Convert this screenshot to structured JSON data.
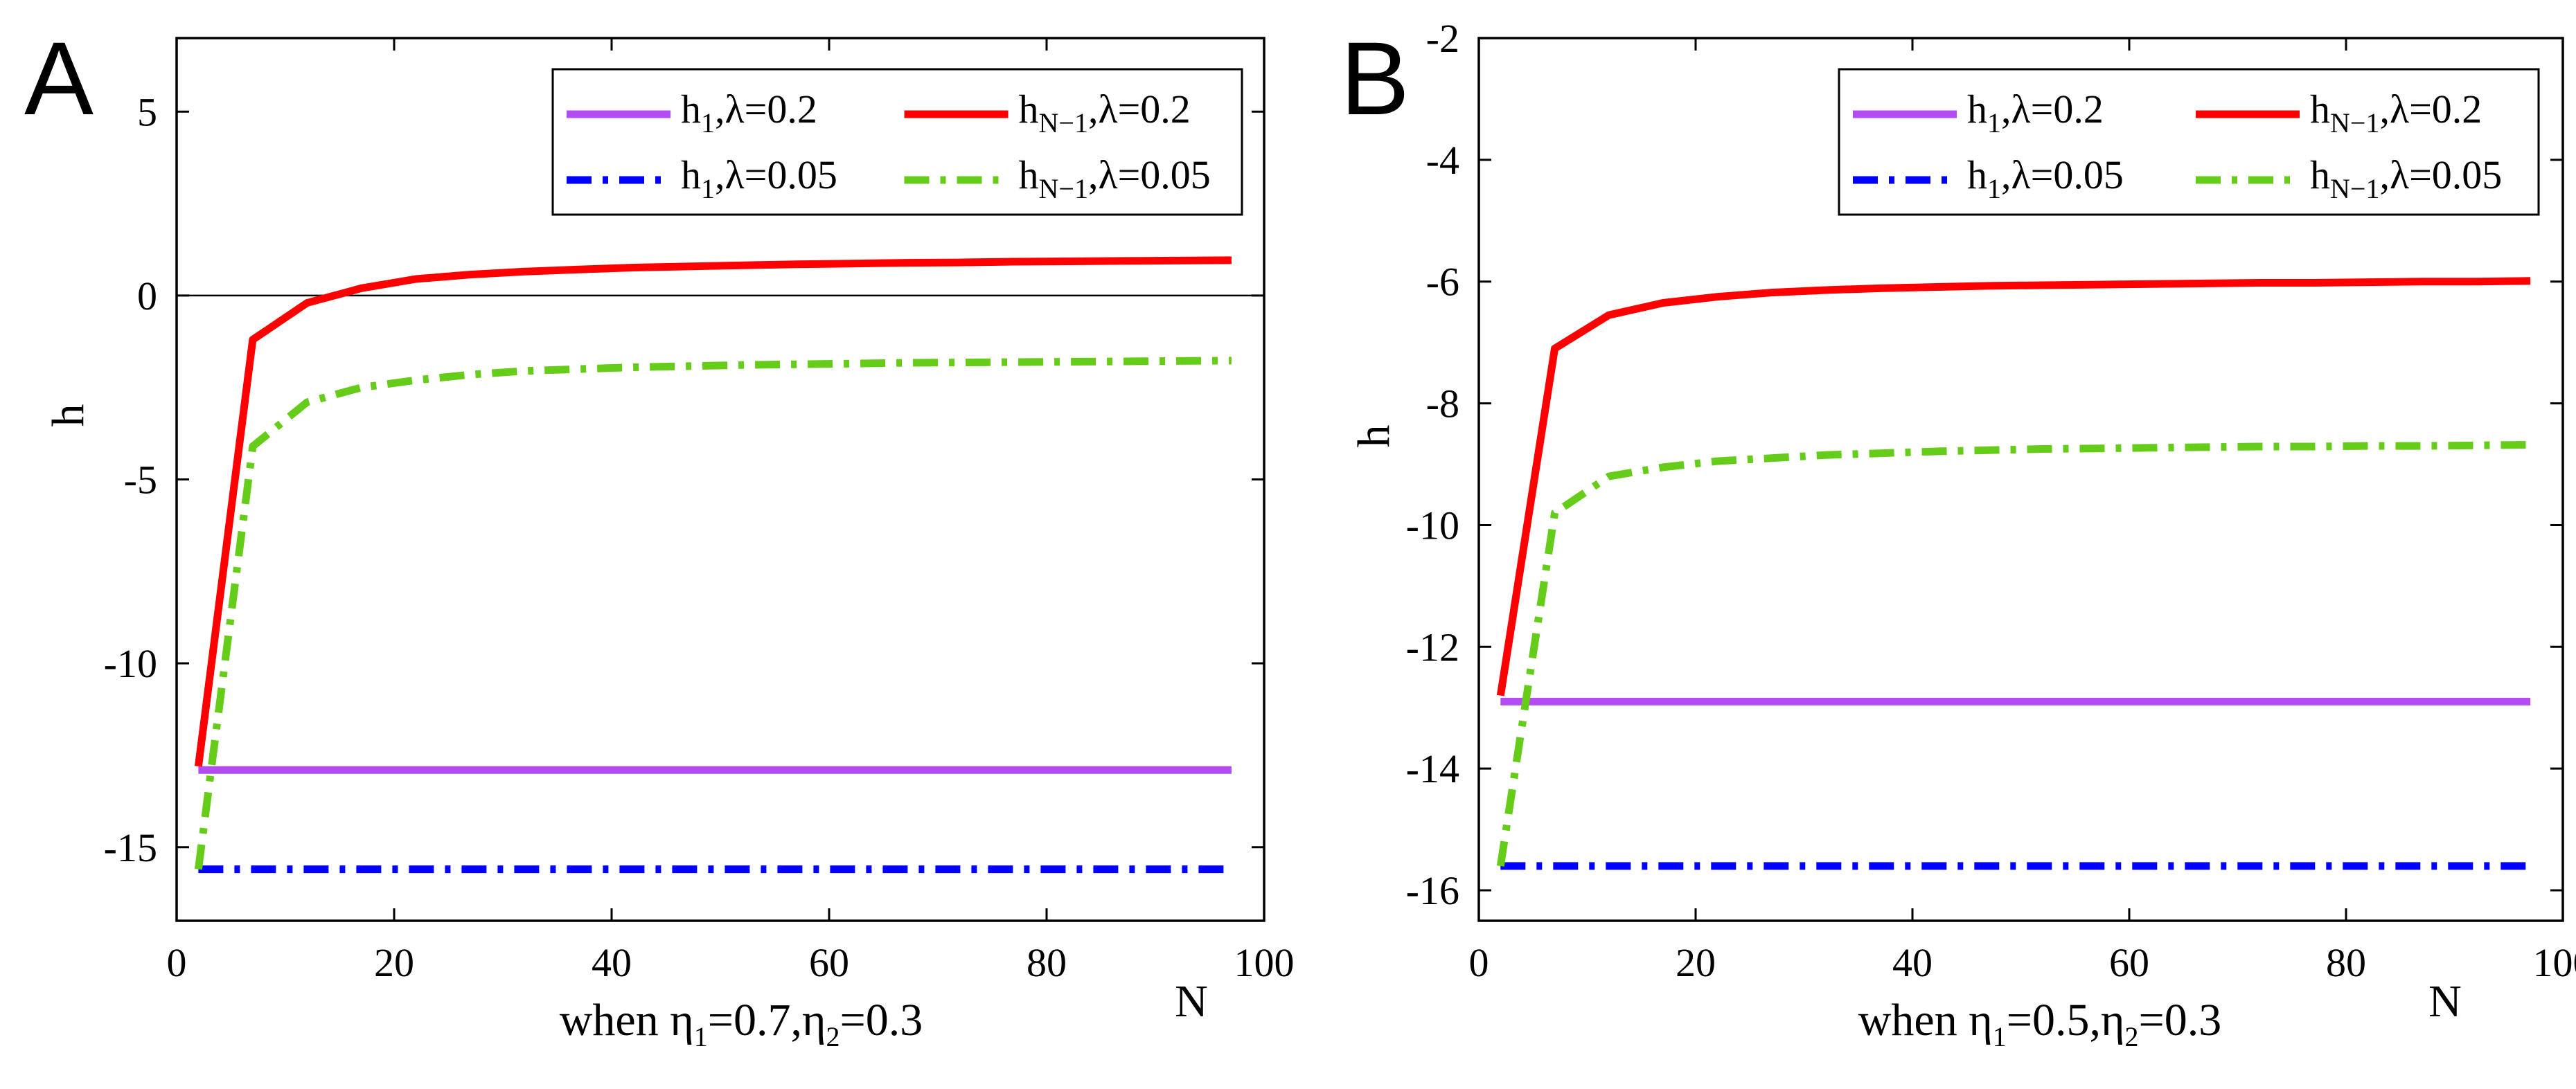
{
  "chart_data": [
    {
      "type": "line",
      "panel": "A",
      "title": "",
      "xlabel": "N",
      "ylabel": "h",
      "caption": {
        "prefix": "when η",
        "sub1": "1",
        "mid": "=0.7,η",
        "sub2": "2",
        "suffix": "=0.3"
      },
      "xlim": [
        0,
        100
      ],
      "ylim": [
        -17,
        7
      ],
      "xticks": [
        0,
        20,
        40,
        60,
        80,
        100
      ],
      "yticks": [
        5,
        0,
        -5,
        -10,
        -15
      ],
      "zero_line": true,
      "grid": false,
      "legend_position": "top-right",
      "x": [
        2,
        7,
        12,
        17,
        22,
        27,
        32,
        37,
        42,
        47,
        52,
        57,
        62,
        67,
        72,
        77,
        82,
        87,
        92,
        97
      ],
      "series": [
        {
          "name": "h1,λ=0.2",
          "label_main": "h",
          "label_sub": "1",
          "label_rest": ",λ=0.2",
          "color": "#B34CF2",
          "style": "solid",
          "values": [
            -12.9,
            -12.9,
            -12.9,
            -12.9,
            -12.9,
            -12.9,
            -12.9,
            -12.9,
            -12.9,
            -12.9,
            -12.9,
            -12.9,
            -12.9,
            -12.9,
            -12.9,
            -12.9,
            -12.9,
            -12.9,
            -12.9,
            -12.9
          ]
        },
        {
          "name": "hN−1,λ=0.2",
          "label_main": "h",
          "label_sub": "N−1",
          "label_rest": ",λ=0.2",
          "color": "#FF0000",
          "style": "solid",
          "values": [
            -12.8,
            -1.2,
            -0.2,
            0.2,
            0.45,
            0.57,
            0.65,
            0.71,
            0.76,
            0.79,
            0.82,
            0.85,
            0.87,
            0.89,
            0.9,
            0.92,
            0.93,
            0.94,
            0.95,
            0.96
          ]
        },
        {
          "name": "h1,λ=0.05",
          "label_main": "h",
          "label_sub": "1",
          "label_rest": ",λ=0.05",
          "color": "#0000FF",
          "style": "dashdot",
          "values": [
            -15.6,
            -15.6,
            -15.6,
            -15.6,
            -15.6,
            -15.6,
            -15.6,
            -15.6,
            -15.6,
            -15.6,
            -15.6,
            -15.6,
            -15.6,
            -15.6,
            -15.6,
            -15.6,
            -15.6,
            -15.6,
            -15.6,
            -15.6
          ]
        },
        {
          "name": "hN−1,λ=0.05",
          "label_main": "h",
          "label_sub": "N−1",
          "label_rest": ",λ=0.05",
          "color": "#66CC1A",
          "style": "dashdot",
          "values": [
            -15.6,
            -4.1,
            -2.9,
            -2.5,
            -2.3,
            -2.15,
            -2.05,
            -2.0,
            -1.95,
            -1.92,
            -1.89,
            -1.87,
            -1.85,
            -1.83,
            -1.82,
            -1.81,
            -1.8,
            -1.79,
            -1.78,
            -1.77
          ]
        }
      ]
    },
    {
      "type": "line",
      "panel": "B",
      "title": "",
      "xlabel": "N",
      "ylabel": "h",
      "caption": {
        "prefix": "when η",
        "sub1": "1",
        "mid": "=0.5,η",
        "sub2": "2",
        "suffix": "=0.3"
      },
      "xlim": [
        0,
        100
      ],
      "ylim": [
        -16.5,
        -2
      ],
      "xticks": [
        0,
        20,
        40,
        60,
        80,
        100
      ],
      "yticks": [
        -2,
        -4,
        -6,
        -8,
        -10,
        -12,
        -14,
        -16
      ],
      "zero_line": false,
      "grid": false,
      "legend_position": "top-right",
      "x": [
        2,
        7,
        12,
        17,
        22,
        27,
        32,
        37,
        42,
        47,
        52,
        57,
        62,
        67,
        72,
        77,
        82,
        87,
        92,
        97
      ],
      "series": [
        {
          "name": "h1,λ=0.2",
          "label_main": "h",
          "label_sub": "1",
          "label_rest": ",λ=0.2",
          "color": "#B34CF2",
          "style": "solid",
          "values": [
            -12.9,
            -12.9,
            -12.9,
            -12.9,
            -12.9,
            -12.9,
            -12.9,
            -12.9,
            -12.9,
            -12.9,
            -12.9,
            -12.9,
            -12.9,
            -12.9,
            -12.9,
            -12.9,
            -12.9,
            -12.9,
            -12.9,
            -12.9
          ]
        },
        {
          "name": "hN−1,λ=0.2",
          "label_main": "h",
          "label_sub": "N−1",
          "label_rest": ",λ=0.2",
          "color": "#FF0000",
          "style": "solid",
          "values": [
            -12.8,
            -7.1,
            -6.55,
            -6.35,
            -6.25,
            -6.18,
            -6.14,
            -6.11,
            -6.09,
            -6.07,
            -6.06,
            -6.05,
            -6.04,
            -6.03,
            -6.02,
            -6.02,
            -6.01,
            -6.0,
            -6.0,
            -5.99
          ]
        },
        {
          "name": "h1,λ=0.05",
          "label_main": "h",
          "label_sub": "1",
          "label_rest": ",λ=0.05",
          "color": "#0000FF",
          "style": "dashdot",
          "values": [
            -15.6,
            -15.6,
            -15.6,
            -15.6,
            -15.6,
            -15.6,
            -15.6,
            -15.6,
            -15.6,
            -15.6,
            -15.6,
            -15.6,
            -15.6,
            -15.6,
            -15.6,
            -15.6,
            -15.6,
            -15.6,
            -15.6,
            -15.6
          ]
        },
        {
          "name": "hN−1,λ=0.05",
          "label_main": "h",
          "label_sub": "N−1",
          "label_rest": ",λ=0.05",
          "color": "#66CC1A",
          "style": "dashdot",
          "values": [
            -15.6,
            -9.8,
            -9.2,
            -9.05,
            -8.95,
            -8.9,
            -8.85,
            -8.82,
            -8.79,
            -8.77,
            -8.75,
            -8.74,
            -8.73,
            -8.72,
            -8.71,
            -8.71,
            -8.7,
            -8.7,
            -8.69,
            -8.68
          ]
        }
      ]
    }
  ]
}
